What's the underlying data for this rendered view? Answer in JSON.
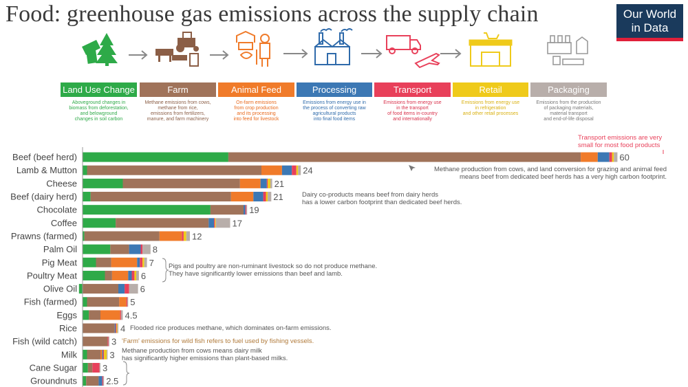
{
  "title": "Food: greenhouse gas emissions across the supply chain",
  "logo": {
    "line1": "Our World",
    "line2": "in Data"
  },
  "stages": [
    {
      "label": "Land Use Change",
      "color": "#2eaa48",
      "text_color": "#2eaa48",
      "icon": "tree-stump-icon",
      "desc": [
        "Aboveground changes in",
        "biomass from deforestation,",
        "and belowground",
        "changes in soil carbon"
      ]
    },
    {
      "label": "Farm",
      "color": "#a0735a",
      "text_color": "#8b5e46",
      "icon": "tractor-livestock-icon",
      "desc": [
        "Methane emissions from cows,",
        "methane from rice,",
        "emissions from fertilizers,",
        "manure, and farm machinery"
      ]
    },
    {
      "label": "Animal Feed",
      "color": "#f07b2a",
      "text_color": "#e86a1d",
      "icon": "farmer-feed-icon",
      "desc": [
        "On-farm emissions",
        "from crop production",
        "and its processing",
        "into feed for livestock"
      ]
    },
    {
      "label": "Processing",
      "color": "#3c78b4",
      "text_color": "#2e6aaa",
      "icon": "factory-icon",
      "desc": [
        "Emissions from energy use in",
        "the process of converting raw",
        "agricultural products",
        "into final food items"
      ]
    },
    {
      "label": "Transport",
      "color": "#e8405a",
      "text_color": "#d8304a",
      "icon": "truck-plane-icon",
      "desc": [
        "Emissions from energy use",
        "in the transport",
        "of food items in-country",
        "and internationally"
      ]
    },
    {
      "label": "Retail",
      "color": "#efca1a",
      "text_color": "#d9b010",
      "icon": "store-cart-icon",
      "desc": [
        "Emissions from energy use",
        "in refrigeration",
        "and other retail processes"
      ]
    },
    {
      "label": "Packaging",
      "color": "#b8aeaa",
      "text_color": "#777",
      "icon": "packaging-icon",
      "desc": [
        "Emissions from the production",
        "of packaging materials,",
        "material transport",
        "and end-of-life disposal"
      ]
    }
  ],
  "chart_data": {
    "type": "bar",
    "orientation": "horizontal",
    "stacked": true,
    "unit": "kg CO2-equivalents per kg of food",
    "categories": [
      "Beef (beef herd)",
      "Lamb & Mutton",
      "Cheese",
      "Beef (dairy herd)",
      "Chocolate",
      "Coffee",
      "Prawns (farmed)",
      "Palm Oil",
      "Pig Meat",
      "Poultry Meat",
      "Olive Oil",
      "Fish (farmed)",
      "Eggs",
      "Rice",
      "Fish (wild catch)",
      "Milk",
      "Cane Sugar",
      "Groundnuts"
    ],
    "totals": [
      "60",
      "24",
      "21",
      "21",
      "19",
      "17",
      "12",
      "8",
      "7",
      "6",
      "6",
      "5",
      "4.5",
      "4",
      "3",
      "3",
      "3",
      "2.5"
    ],
    "series": [
      {
        "name": "Land Use Change",
        "color": "#2eaa48",
        "values": [
          16.3,
          0.5,
          4.5,
          0.9,
          14.3,
          3.7,
          0.2,
          3.1,
          1.5,
          2.5,
          -0.4,
          0.5,
          0.7,
          0.0,
          0.0,
          0.5,
          0.6,
          0.4
        ]
      },
      {
        "name": "Farm",
        "color": "#a0735a",
        "values": [
          39.4,
          19.5,
          13.1,
          15.7,
          3.7,
          10.4,
          8.4,
          2.1,
          1.7,
          0.8,
          4.0,
          3.6,
          1.3,
          3.6,
          2.8,
          1.5,
          0.5,
          1.4
        ]
      },
      {
        "name": "Animal Feed",
        "color": "#f07b2a",
        "values": [
          1.9,
          2.3,
          2.3,
          2.5,
          0.0,
          0.0,
          2.5,
          0.0,
          2.9,
          1.8,
          0.0,
          0.8,
          2.2,
          0.0,
          0.0,
          0.2,
          0.0,
          0.0
        ]
      },
      {
        "name": "Processing",
        "color": "#3c78b4",
        "values": [
          1.3,
          1.1,
          0.7,
          1.1,
          0.2,
          0.6,
          0.0,
          1.3,
          0.3,
          0.4,
          0.7,
          0.0,
          0.0,
          0.1,
          0.0,
          0.1,
          0.0,
          0.4
        ]
      },
      {
        "name": "Transport",
        "color": "#e8405a",
        "values": [
          0.3,
          0.5,
          0.1,
          0.3,
          0.1,
          0.1,
          0.2,
          0.2,
          0.3,
          0.3,
          0.5,
          0.1,
          0.1,
          0.1,
          0.1,
          0.1,
          0.8,
          0.1
        ]
      },
      {
        "name": "Retail",
        "color": "#efca1a",
        "values": [
          0.2,
          0.2,
          0.3,
          0.2,
          0.0,
          0.1,
          0.3,
          0.0,
          0.2,
          0.2,
          0.0,
          0.0,
          0.0,
          0.1,
          0.0,
          0.3,
          0.0,
          0.0
        ]
      },
      {
        "name": "Packaging",
        "color": "#b8aeaa",
        "values": [
          0.4,
          0.3,
          0.2,
          0.4,
          0.1,
          1.6,
          0.4,
          0.9,
          0.3,
          0.3,
          1.0,
          0.1,
          0.2,
          0.1,
          0.1,
          0.1,
          0.1,
          0.1
        ]
      }
    ],
    "xlim": [
      0,
      62
    ],
    "grid": false,
    "annotations": [
      {
        "id": "transport-small",
        "text": [
          "Transport emissions are very",
          "small for most food products"
        ],
        "color": "#e8405a"
      },
      {
        "id": "beef-methane",
        "text": [
          "Methane production from cows, and land conversion for grazing and animal feed",
          "means beef from dedicated beef herds has a very high carbon footprint."
        ],
        "color": "#555"
      },
      {
        "id": "dairy-coproducts",
        "text": [
          "Dairy co-products means beef from dairy herds",
          "has a lower carbon footprint than dedicated beef herds."
        ],
        "color": "#555"
      },
      {
        "id": "pigs-poultry",
        "text": [
          "Pigs and poultry are non-ruminant livestock so do not produce methane.",
          "They have significantly lower emissions than beef and lamb."
        ],
        "color": "#555"
      },
      {
        "id": "rice-methane",
        "text": [
          "Flooded rice produces methane, which dominates on-farm emissions."
        ],
        "color": "#555"
      },
      {
        "id": "wild-fish",
        "text": [
          "'Farm' emissions for wild fish refers to fuel used by fishing vessels."
        ],
        "color": "#b07a3a"
      },
      {
        "id": "milk-methane",
        "text": [
          "Methane production from cows means dairy milk",
          "has significantly higher emissions than plant-based milks."
        ],
        "color": "#555"
      }
    ]
  }
}
